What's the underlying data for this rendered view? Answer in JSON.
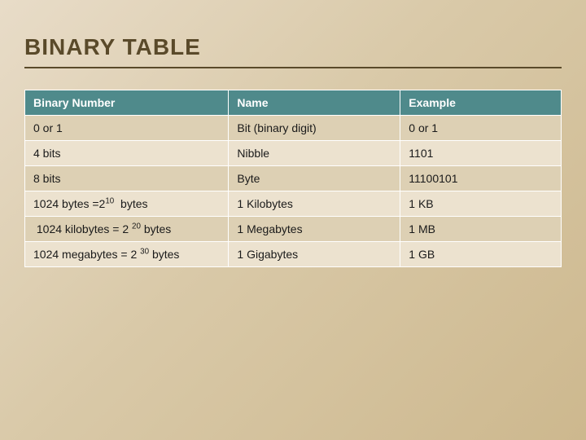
{
  "slide": {
    "title": "BINARY TABLE",
    "title_color": "#5a4a2a",
    "title_fontsize": 28,
    "background_gradient": [
      "#e8dcc8",
      "#d9c9a8",
      "#cdb88e"
    ],
    "rule_color": "#5a4a2a"
  },
  "table": {
    "type": "table",
    "header_bg": "#4f8a8b",
    "header_fg": "#ffffff",
    "row_bg": "#ece2cf",
    "row_alt_bg": "#ddd0b4",
    "border_color": "#ffffff",
    "fontsize": 14,
    "columns": [
      {
        "label": "Binary Number",
        "width_pct": 38
      },
      {
        "label": "Name",
        "width_pct": 32
      },
      {
        "label": "Example",
        "width_pct": 30
      }
    ],
    "rows": [
      {
        "binary": "0 or 1",
        "name": "Bit (binary digit)",
        "example": "0 or 1"
      },
      {
        "binary": "4 bits",
        "name": "Nibble",
        "example": "1101"
      },
      {
        "binary": "8 bits",
        "name": "Byte",
        "example": "11100101"
      },
      {
        "binary_html": "1024 bytes =2<sup>10</sup>&nbsp;&nbsp;bytes",
        "name": "1 Kilobytes",
        "example": "1 KB"
      },
      {
        "binary_html": "&nbsp;1024 kilobytes = 2 <sup>20</sup> bytes",
        "name": "1 Megabytes",
        "example": "1 MB"
      },
      {
        "binary_html": "1024 megabytes = 2 <sup>30</sup> bytes",
        "name": "1 Gigabytes",
        "example": "1 GB"
      }
    ]
  }
}
